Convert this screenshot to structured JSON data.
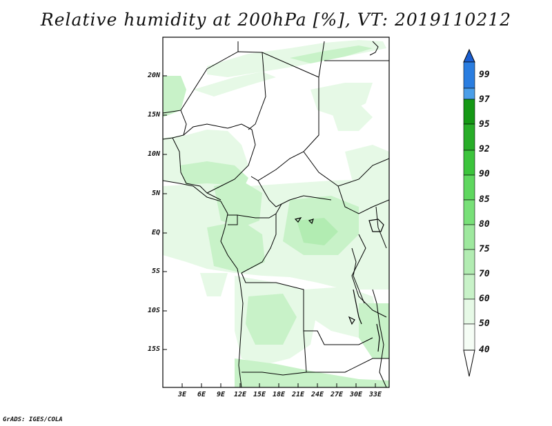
{
  "title": "Relative humidity at 200hPa [%], VT: 2019110212",
  "credit": "GrADS: IGES/COLA",
  "axes": {
    "lat_labels": [
      "20N",
      "15N",
      "10N",
      "5N",
      "EQ",
      "5S",
      "10S",
      "15S"
    ],
    "lon_labels": [
      "3E",
      "6E",
      "9E",
      "12E",
      "15E",
      "18E",
      "21E",
      "24E",
      "27E",
      "30E",
      "33E"
    ]
  },
  "colorbar": {
    "levels": [
      "40",
      "50",
      "60",
      "70",
      "75",
      "80",
      "85",
      "90",
      "92",
      "95",
      "97",
      "99"
    ],
    "colors": [
      "#ffffff",
      "#e6f9e6",
      "#c8f2c8",
      "#b2ecb2",
      "#9ee89e",
      "#78e078",
      "#5fd75f",
      "#3cc43c",
      "#28ad28",
      "#159815",
      "#4b9ee8",
      "#2a7de0",
      "#1a5ed0"
    ]
  },
  "map_colors": {
    "very_light": "#e6f9e6",
    "light": "#c8f2c8",
    "medium": "#b2ecb2",
    "boundary": "#000000"
  }
}
